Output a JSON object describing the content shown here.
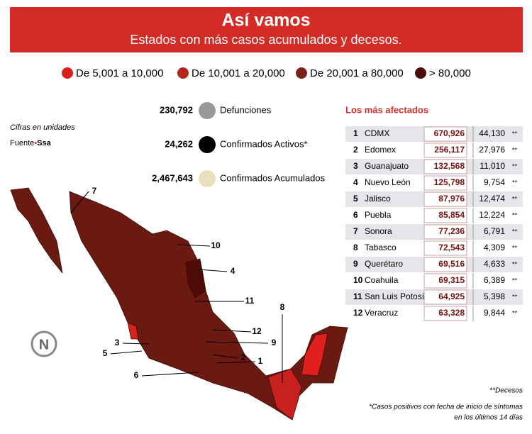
{
  "header": {
    "title": "Así vamos",
    "subtitle": "Estados con más casos acumulados y decesos."
  },
  "legend": [
    {
      "label": "De 5,001 a 10,000",
      "color": "#d9221e"
    },
    {
      "label": "De 10,001 a 20,000",
      "color": "#b32620"
    },
    {
      "label": "De 20,001 a 80,000",
      "color": "#7a2418"
    },
    {
      "label": "> 80,000",
      "color": "#4e0b06"
    }
  ],
  "stats": [
    {
      "value": "230,792",
      "label": "Defunciones",
      "color": "#999999"
    },
    {
      "value": "24,262",
      "label": "Confirmados Activos*",
      "color": "#000000"
    },
    {
      "value": "2,467,643",
      "label": "Confirmados Acumulados",
      "color": "#eadfbd"
    }
  ],
  "notes": {
    "units": "Cifras en unidades",
    "source_label": "Fuente",
    "source": "Ssa",
    "deaths_key": "**Decesos",
    "footnote_1": "*Casos positivos con fecha de inicio de síntomas",
    "footnote_2": "en los últimos 14 días"
  },
  "table": {
    "title": "Los más afectados",
    "marker": "**",
    "rows": [
      [
        "1",
        "CDMX",
        "670,926",
        "44,130"
      ],
      [
        "2",
        "Edomex",
        "256,117",
        "27,976"
      ],
      [
        "3",
        "Guanajuato",
        "132,568",
        "11,010"
      ],
      [
        "4",
        "Nuevo León",
        "125,798",
        "9,754"
      ],
      [
        "5",
        "Jalisco",
        "87,976",
        "12,474"
      ],
      [
        "6",
        "Puebla",
        "85,854",
        "12,224"
      ],
      [
        "7",
        "Sonora",
        "77,236",
        "6,791"
      ],
      [
        "8",
        "Tabasco",
        "72,543",
        "4,309"
      ],
      [
        "9",
        "Querétaro",
        "69,516",
        "4,633"
      ],
      [
        "10",
        "Coahuila",
        "69,315",
        "6,389"
      ],
      [
        "11",
        "San Luis Potosí",
        "64,925",
        "5,398"
      ],
      [
        "12",
        "Veracruz",
        "63,328",
        "9,844"
      ]
    ]
  },
  "map": {
    "labels": [
      "7",
      "10",
      "4",
      "11",
      "12",
      "9",
      "3",
      "2",
      "1",
      "5",
      "6",
      "8"
    ]
  },
  "logo": "N"
}
